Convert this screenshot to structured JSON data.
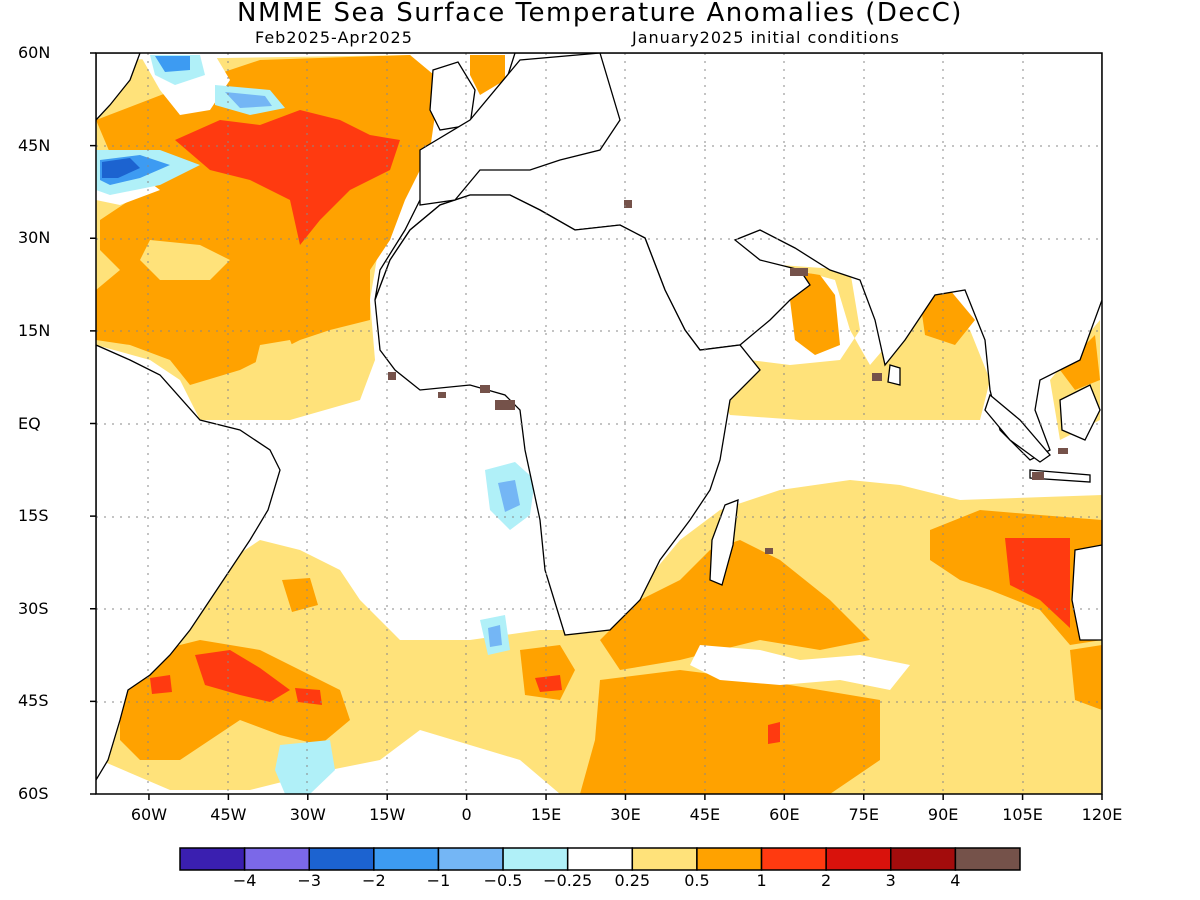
{
  "title": "NMME Sea Surface Temperature Anomalies (DecC)",
  "subtitle_left": "Feb2025-Apr2025",
  "subtitle_right": "January2025 initial conditions",
  "y_ticks": [
    "60N",
    "45N",
    "30N",
    "15N",
    "EQ",
    "15S",
    "30S",
    "45S",
    "60S"
  ],
  "x_ticks": [
    "60W",
    "45W",
    "30W",
    "15W",
    "0",
    "15E",
    "30E",
    "45E",
    "60E",
    "75E",
    "90E",
    "105E",
    "120E"
  ],
  "legend": {
    "colors": [
      "#3a1fb0",
      "#7b68e8",
      "#1c63d0",
      "#3d9bf2",
      "#74b6f5",
      "#b0f0f8",
      "#ffffff",
      "#ffe27a",
      "#ffa200",
      "#ff3a10",
      "#d9120c",
      "#a30c0c",
      "#75524a"
    ],
    "labels": [
      "−4",
      "−3",
      "−2",
      "−1",
      "−0.5",
      "−0.25",
      "0.25",
      "0.5",
      "1",
      "2",
      "3",
      "4"
    ]
  },
  "chart_data": {
    "type": "heatmap",
    "map_extent": {
      "lon": [
        -70,
        120
      ],
      "lat": [
        -60,
        60
      ]
    },
    "grid": true,
    "colorbar": "bottom",
    "value_ranges_degC": [
      "<-4",
      "-4 to -3",
      "-3 to -2",
      "-2 to -1",
      "-1 to -0.5",
      "-0.5 to -0.25",
      "-0.25 to 0.25",
      "0.25 to 0.5",
      "0.5 to 1",
      "1 to 2",
      "2 to 3",
      "3 to 4",
      ">4"
    ]
  }
}
